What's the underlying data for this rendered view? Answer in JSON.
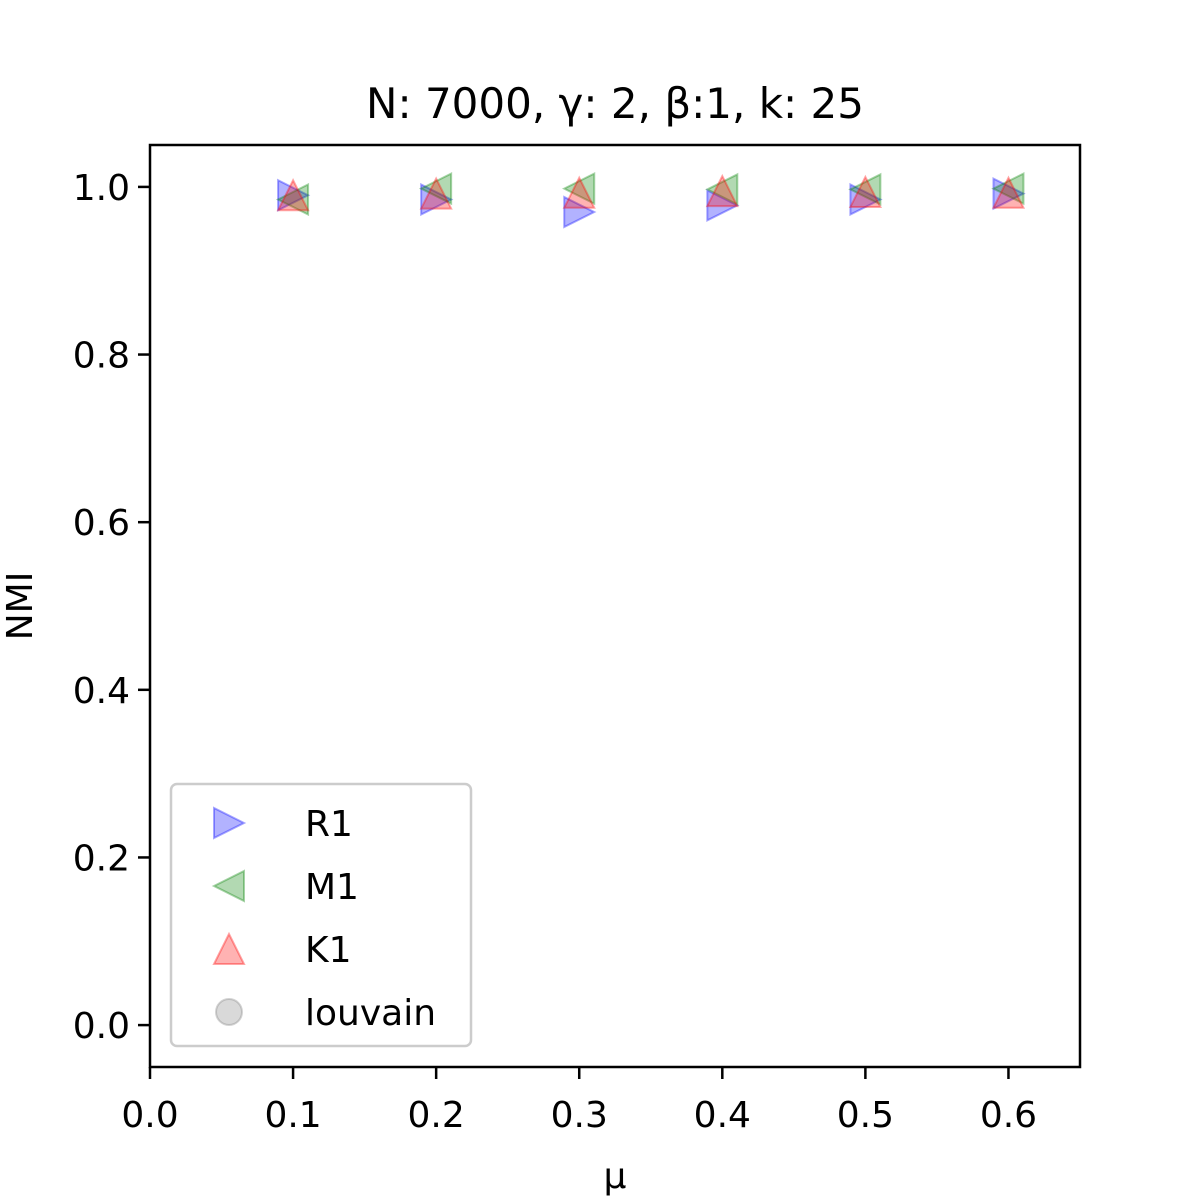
{
  "chart_data": {
    "type": "scatter",
    "title": "N: 7000, γ: 2, β:1, k: 25",
    "xlabel": "μ",
    "ylabel": "NMI",
    "xlim": [
      0.0,
      0.65
    ],
    "ylim": [
      -0.05,
      1.05
    ],
    "xticks": [
      0.0,
      0.1,
      0.2,
      0.3,
      0.4,
      0.5,
      0.6
    ],
    "xtick_labels": [
      "0.0",
      "0.1",
      "0.2",
      "0.3",
      "0.4",
      "0.5",
      "0.6"
    ],
    "yticks": [
      0.0,
      0.2,
      0.4,
      0.6,
      0.8,
      1.0
    ],
    "ytick_labels": [
      "0.0",
      "0.2",
      "0.4",
      "0.6",
      "0.8",
      "1.0"
    ],
    "grid": false,
    "legend_position": "lower-left",
    "series": [
      {
        "name": "R1",
        "marker": "triangle-right",
        "color": "#0000ff",
        "x": [
          0.1,
          0.2,
          0.3,
          0.4,
          0.5,
          0.6
        ],
        "y": [
          0.99,
          0.985,
          0.97,
          0.978,
          0.985,
          0.992
        ]
      },
      {
        "name": "M1",
        "marker": "triangle-left",
        "color": "#008000",
        "x": [
          0.1,
          0.2,
          0.3,
          0.4,
          0.5,
          0.6
        ],
        "y": [
          0.985,
          0.998,
          0.998,
          0.997,
          0.997,
          0.998
        ]
      },
      {
        "name": "K1",
        "marker": "triangle-up",
        "color": "#ff0000",
        "x": [
          0.1,
          0.2,
          0.3,
          0.4,
          0.5,
          0.6
        ],
        "y": [
          0.99,
          0.992,
          0.993,
          0.995,
          0.994,
          0.993
        ]
      },
      {
        "name": "louvain",
        "marker": "circle",
        "color": "#808080",
        "x": [],
        "y": []
      }
    ]
  }
}
